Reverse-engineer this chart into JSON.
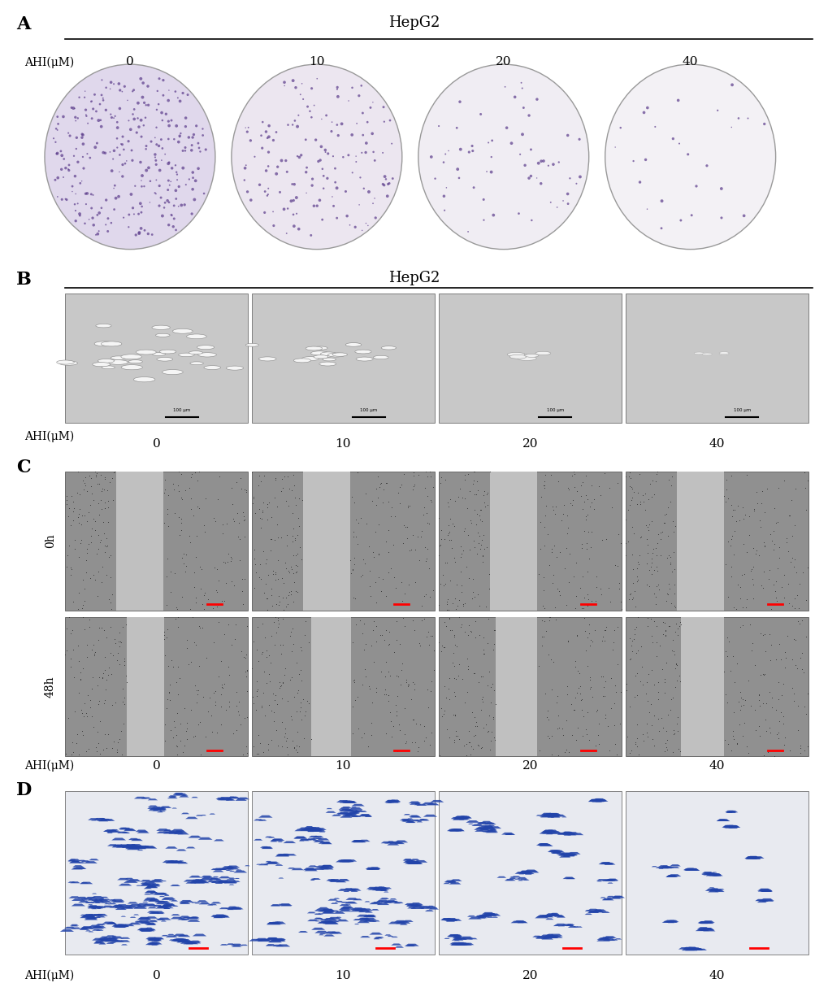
{
  "panel_A": {
    "label": "A",
    "title": "HepG2",
    "ahi_label": "AHI(μM)",
    "concentrations": [
      "0",
      "10",
      "20",
      "40"
    ],
    "bg_color_ellipse": [
      "#e0d8ec",
      "#ece6f0",
      "#f0edf3",
      "#f3f1f5"
    ],
    "dot_density": [
      0.85,
      0.45,
      0.18,
      0.08
    ],
    "dot_color": "#5a3a8a"
  },
  "panel_B": {
    "label": "B",
    "title": "HepG2",
    "ahi_label": "AHI(μM)",
    "concentrations": [
      "0",
      "10",
      "20",
      "40"
    ],
    "bg_color": "#c8c8c8",
    "sphere_sizes": [
      0.9,
      0.55,
      0.2,
      0.12
    ]
  },
  "panel_C": {
    "label": "C",
    "time_labels": [
      "0h",
      "48h"
    ],
    "ahi_label": "AHI(μM)",
    "concentrations": [
      "0",
      "10",
      "20",
      "40"
    ],
    "bg_dark": "#888888",
    "bg_light": "#b0b0b0"
  },
  "panel_D": {
    "label": "D",
    "ahi_label": "AHI(μM)",
    "concentrations": [
      "0",
      "10",
      "20",
      "40"
    ],
    "dot_density": [
      0.95,
      0.75,
      0.5,
      0.25
    ],
    "dot_color": "#2244aa",
    "bg_color": "#e8eaf0"
  },
  "figure_bg": "#ffffff",
  "label_fontsize": 16,
  "title_fontsize": 13,
  "ahi_fontsize": 10,
  "conc_fontsize": 11
}
